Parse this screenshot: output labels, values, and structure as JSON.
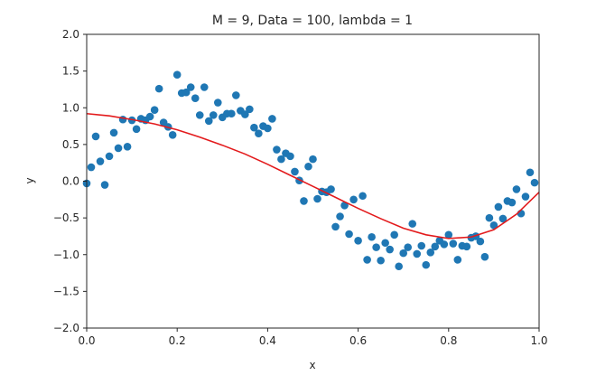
{
  "chart_data": {
    "type": "scatter",
    "title": "M = 9, Data = 100, lambda = 1",
    "xlabel": "x",
    "ylabel": "y",
    "xlim": [
      0.0,
      1.0
    ],
    "ylim": [
      -2.0,
      2.0
    ],
    "xticks": [
      "0.0",
      "0.2",
      "0.4",
      "0.6",
      "0.8",
      "1.0"
    ],
    "yticks": [
      "2.0",
      "1.5",
      "1.0",
      "0.5",
      "0.0",
      "−0.5",
      "−1.0",
      "−1.5",
      "−2.0"
    ],
    "grid": false,
    "series": [
      {
        "kind": "scatter",
        "color": "#1f77b4",
        "points": [
          [
            0.0,
            -0.03
          ],
          [
            0.01,
            0.19
          ],
          [
            0.02,
            0.61
          ],
          [
            0.03,
            0.27
          ],
          [
            0.04,
            -0.05
          ],
          [
            0.05,
            0.34
          ],
          [
            0.06,
            0.66
          ],
          [
            0.07,
            0.45
          ],
          [
            0.08,
            0.84
          ],
          [
            0.09,
            0.47
          ],
          [
            0.1,
            0.83
          ],
          [
            0.11,
            0.71
          ],
          [
            0.12,
            0.85
          ],
          [
            0.13,
            0.83
          ],
          [
            0.14,
            0.88
          ],
          [
            0.15,
            0.97
          ],
          [
            0.16,
            1.26
          ],
          [
            0.17,
            0.8
          ],
          [
            0.18,
            0.74
          ],
          [
            0.19,
            0.63
          ],
          [
            0.2,
            1.45
          ],
          [
            0.21,
            1.2
          ],
          [
            0.22,
            1.21
          ],
          [
            0.23,
            1.28
          ],
          [
            0.24,
            1.13
          ],
          [
            0.25,
            0.9
          ],
          [
            0.26,
            1.28
          ],
          [
            0.27,
            0.82
          ],
          [
            0.28,
            0.9
          ],
          [
            0.29,
            1.07
          ],
          [
            0.3,
            0.87
          ],
          [
            0.31,
            0.92
          ],
          [
            0.32,
            0.92
          ],
          [
            0.33,
            1.17
          ],
          [
            0.34,
            0.96
          ],
          [
            0.35,
            0.91
          ],
          [
            0.36,
            0.98
          ],
          [
            0.37,
            0.73
          ],
          [
            0.38,
            0.65
          ],
          [
            0.39,
            0.75
          ],
          [
            0.4,
            0.72
          ],
          [
            0.41,
            0.85
          ],
          [
            0.42,
            0.43
          ],
          [
            0.43,
            0.3
          ],
          [
            0.44,
            0.38
          ],
          [
            0.45,
            0.34
          ],
          [
            0.46,
            0.13
          ],
          [
            0.47,
            0.01
          ],
          [
            0.48,
            -0.27
          ],
          [
            0.49,
            0.2
          ],
          [
            0.5,
            0.3
          ],
          [
            0.51,
            -0.24
          ],
          [
            0.52,
            -0.14
          ],
          [
            0.53,
            -0.15
          ],
          [
            0.54,
            -0.11
          ],
          [
            0.55,
            -0.62
          ],
          [
            0.56,
            -0.48
          ],
          [
            0.57,
            -0.33
          ],
          [
            0.58,
            -0.72
          ],
          [
            0.59,
            -0.25
          ],
          [
            0.6,
            -0.81
          ],
          [
            0.61,
            -0.2
          ],
          [
            0.62,
            -1.07
          ],
          [
            0.63,
            -0.76
          ],
          [
            0.64,
            -0.9
          ],
          [
            0.65,
            -1.08
          ],
          [
            0.66,
            -0.84
          ],
          [
            0.67,
            -0.93
          ],
          [
            0.68,
            -0.73
          ],
          [
            0.69,
            -1.16
          ],
          [
            0.7,
            -0.98
          ],
          [
            0.71,
            -0.9
          ],
          [
            0.72,
            -0.58
          ],
          [
            0.73,
            -0.99
          ],
          [
            0.74,
            -0.88
          ],
          [
            0.75,
            -1.14
          ],
          [
            0.76,
            -0.97
          ],
          [
            0.77,
            -0.89
          ],
          [
            0.78,
            -0.81
          ],
          [
            0.79,
            -0.86
          ],
          [
            0.8,
            -0.73
          ],
          [
            0.81,
            -0.85
          ],
          [
            0.82,
            -1.07
          ],
          [
            0.83,
            -0.88
          ],
          [
            0.84,
            -0.89
          ],
          [
            0.85,
            -0.77
          ],
          [
            0.86,
            -0.75
          ],
          [
            0.87,
            -0.82
          ],
          [
            0.88,
            -1.03
          ],
          [
            0.89,
            -0.5
          ],
          [
            0.9,
            -0.6
          ],
          [
            0.91,
            -0.35
          ],
          [
            0.92,
            -0.51
          ],
          [
            0.93,
            -0.27
          ],
          [
            0.94,
            -0.29
          ],
          [
            0.95,
            -0.11
          ],
          [
            0.96,
            -0.44
          ],
          [
            0.97,
            -0.21
          ],
          [
            0.98,
            0.12
          ],
          [
            0.99,
            -0.02
          ]
        ]
      },
      {
        "kind": "line",
        "color": "#e31a1c",
        "x": [
          0.0,
          0.05,
          0.1,
          0.15,
          0.2,
          0.25,
          0.3,
          0.35,
          0.4,
          0.45,
          0.5,
          0.55,
          0.6,
          0.65,
          0.7,
          0.75,
          0.8,
          0.85,
          0.9,
          0.95,
          1.0
        ],
        "y": [
          0.92,
          0.89,
          0.84,
          0.78,
          0.7,
          0.6,
          0.49,
          0.37,
          0.23,
          0.08,
          -0.07,
          -0.22,
          -0.37,
          -0.51,
          -0.64,
          -0.73,
          -0.78,
          -0.76,
          -0.66,
          -0.45,
          -0.15
        ]
      }
    ]
  }
}
